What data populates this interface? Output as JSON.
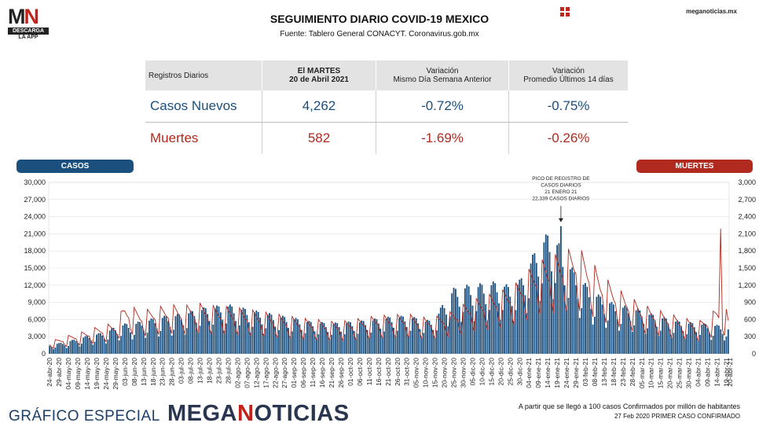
{
  "logo": {
    "mark_m": "M",
    "mark_n": "N",
    "line1": "DESCARGA",
    "line2": "LA APP"
  },
  "header": {
    "title": "SEGUIMIENTO DIARIO COVID-19 MEXICO",
    "source": "Fuente: Tablero General CONACYT. Coronavirus.gob.mx",
    "site": "meganoticias.mx",
    "grid_icon": "grid-icon"
  },
  "stats_table": {
    "col0": "Registros Diarios",
    "col1_line1": "El MARTES",
    "col1_line2": "20 de Abril 2021",
    "col2_line1": "Variación",
    "col2_line2": "Mismo Día Semana Anterior",
    "col3_line1": "Variación",
    "col3_line2": "Promedio Últimos 14 días",
    "rows": [
      {
        "label": "Casos Nuevos",
        "value": "4,262",
        "var_week": "-0.72%",
        "var_14": "-0.75%"
      },
      {
        "label": "Muertes",
        "value": "582",
        "var_week": "-1.69%",
        "var_14": "-0.26%"
      }
    ]
  },
  "badges": {
    "left": "CASOS",
    "right": "MUERTES"
  },
  "colors": {
    "casos": "#1b4f7d",
    "muertes": "#b02a1f",
    "brand_red": "#c2231b",
    "brand_dark": "#2a3550"
  },
  "chart_data": {
    "type": "bar",
    "title": "",
    "xlabel": "",
    "ylabel_left": "CASOS",
    "ylabel_right": "MUERTES",
    "ylim_left": [
      0,
      30000
    ],
    "ylim_right": [
      0,
      3000
    ],
    "yticks_left": [
      "0",
      "3,000",
      "6,000",
      "9,000",
      "12,000",
      "15,000",
      "18,000",
      "21,000",
      "24,000",
      "27,000",
      "30,000"
    ],
    "yticks_right": [
      "0",
      "300",
      "600",
      "900",
      "1,200",
      "1,500",
      "1,800",
      "2,100",
      "2,400",
      "2,700",
      "3,000"
    ],
    "grid": true,
    "x_labels": [
      "24-abr-20",
      "29-abr-20",
      "04-may-20",
      "09-may-20",
      "14-may-20",
      "19-may-20",
      "24-may-20",
      "29-may-20",
      "03-jun-20",
      "08-jun-20",
      "13-jun-20",
      "18-jun-20",
      "23-jun-20",
      "28-jun-20",
      "03-jul-20",
      "08-jul-20",
      "13-jul-20",
      "18-jul-20",
      "23-jul-20",
      "28-jul-20",
      "02-ago-20",
      "07-ago-20",
      "12-ago-20",
      "17-ago-20",
      "22-ago-20",
      "27-ago-20",
      "01-sep-20",
      "06-sep-20",
      "11-sep-20",
      "16-sep-20",
      "21-sep-20",
      "26-sep-20",
      "01-oct-20",
      "06-oct-20",
      "11-oct-20",
      "16-oct-20",
      "21-oct-20",
      "26-oct-20",
      "31-oct-20",
      "05-nov-20",
      "10-nov-20",
      "15-nov-20",
      "20-nov-20",
      "25-nov-20",
      "30-nov-20",
      "05-dic-20",
      "10-dic-20",
      "15-dic-20",
      "20-dic-20",
      "25-dic-20",
      "30-dic-20",
      "04-ene-21",
      "09-ene-21",
      "14-ene-21",
      "19-ene-21",
      "24-ene-21",
      "29-ene-21",
      "03-feb-21",
      "08-feb-21",
      "13-feb-21",
      "18-feb-21",
      "23-feb-21",
      "28-feb-21",
      "05-mar-21",
      "10-mar-21",
      "15-mar-21",
      "20-mar-21",
      "25-mar-21",
      "30-mar-21",
      "04-abr-21",
      "09-abr-21",
      "14-abr-21",
      "19-abr-21"
    ],
    "extra_x_label": "20-abr-21",
    "casos_5day": [
      1400,
      1600,
      1900,
      2300,
      2700,
      3000,
      3300,
      4100,
      4500,
      4600,
      5000,
      5300,
      5600,
      5800,
      6000,
      6400,
      6800,
      7000,
      7200,
      7400,
      6900,
      6800,
      6400,
      6200,
      5800,
      5600,
      5400,
      5000,
      4800,
      4700,
      4600,
      4700,
      4800,
      4900,
      5100,
      5300,
      5500,
      5600,
      5700,
      5400,
      5000,
      5100,
      8000,
      9800,
      10200,
      10300,
      10500,
      10700,
      10800,
      10000,
      11000,
      13500,
      16500,
      18000,
      17000,
      14000,
      12000,
      10500,
      9000,
      8500,
      7500,
      7200,
      7000,
      6500,
      6000,
      5600,
      5200,
      4900,
      4700,
      4600,
      4500,
      4300,
      4200
    ],
    "muertes_5day": [
      160,
      200,
      240,
      270,
      300,
      350,
      380,
      400,
      650,
      600,
      560,
      600,
      620,
      640,
      620,
      640,
      660,
      630,
      620,
      610,
      600,
      580,
      560,
      540,
      520,
      500,
      480,
      460,
      450,
      440,
      420,
      420,
      440,
      460,
      480,
      500,
      500,
      510,
      520,
      500,
      470,
      480,
      520,
      560,
      640,
      700,
      740,
      780,
      820,
      880,
      950,
      1100,
      1200,
      1250,
      1300,
      1350,
      1400,
      1300,
      1150,
      1000,
      900,
      800,
      720,
      650,
      600,
      560,
      520,
      480,
      450,
      420,
      480,
      600,
      580
    ],
    "peak_annotation": {
      "line1": "PICO DE REGISTRO DE",
      "line2": "CASOS DIARIOS",
      "line3": "21 ENERO 21",
      "line4": "22,339 CASOS DIARIOS",
      "date": "21-ene-21",
      "value": 22339
    },
    "last_day": {
      "date": "20-abr-21",
      "casos": 4262,
      "muertes": 582
    }
  },
  "footer": {
    "left": "GRÁFICO ESPECIAL",
    "brand_a": "MEGA",
    "brand_m": "N",
    "brand_b": "OTICIAS",
    "note1": "A partir que se llegó a 100 casos Confirmados por millón de habitantes",
    "note2": "27 Feb 2020 PRIMER CASO CONFIRMADO"
  }
}
